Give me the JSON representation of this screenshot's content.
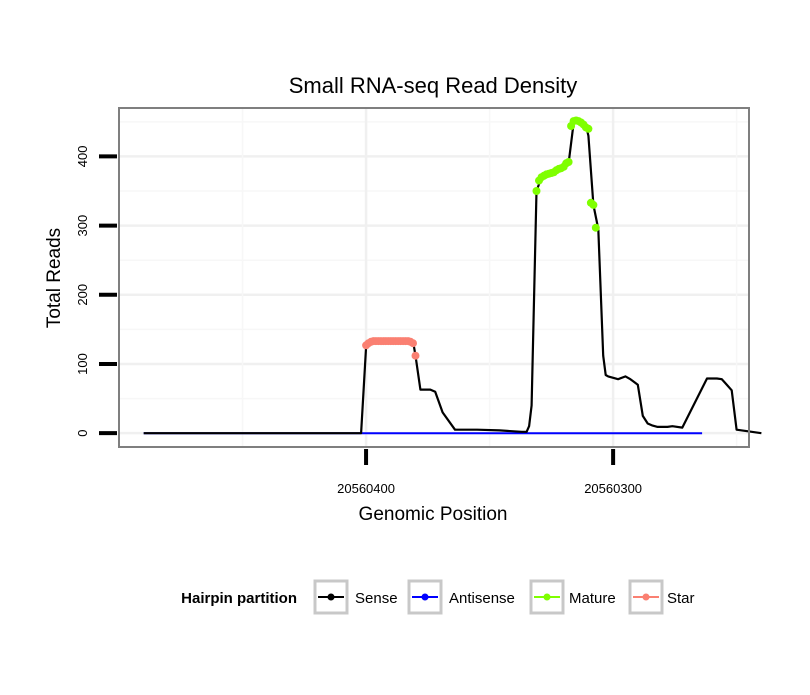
{
  "chart_data": {
    "type": "line",
    "title": "Small RNA-seq Read Density",
    "xlabel": "Genomic Position",
    "ylabel": "Total Reads",
    "x_reversed": true,
    "xlim": [
      20560500,
      20560245
    ],
    "ylim": [
      -20,
      470
    ],
    "x_ticks": [
      20560400,
      20560300
    ],
    "x_tick_labels": [
      "20560400",
      "20560300"
    ],
    "y_ticks": [
      0,
      100,
      200,
      300,
      400
    ],
    "y_tick_labels": [
      "0",
      "100",
      "200",
      "300",
      "400"
    ],
    "grid": true,
    "legend": {
      "title": "Hairpin partition",
      "position": "bottom",
      "items": [
        "Sense",
        "Antisense",
        "Mature",
        "Star"
      ]
    },
    "colors": {
      "Sense": "#000000",
      "Antisense": "#0000ff",
      "Mature": "#7fff00",
      "Star": "#fa8072"
    },
    "series": [
      {
        "name": "Sense",
        "x": [
          20560490,
          20560402,
          20560400,
          20560398,
          20560381,
          20560380,
          20560378,
          20560374,
          20560372,
          20560369,
          20560364,
          20560355,
          20560346,
          20560337,
          20560335,
          20560334,
          20560333,
          20560331,
          20560329,
          20560325,
          20560321,
          20560318,
          20560316,
          20560314,
          20560311,
          20560310,
          20560308,
          20560306,
          20560304,
          20560303,
          20560302,
          20560298,
          20560295,
          20560293,
          20560290,
          20560288,
          20560286,
          20560284,
          20560282,
          20560278,
          20560276,
          20560272,
          20560262,
          20560258,
          20560256,
          20560254,
          20560252,
          20560250,
          20560240
        ],
        "y": [
          0,
          0,
          125,
          133,
          133,
          112,
          63,
          63,
          60,
          30,
          5,
          5,
          4,
          2,
          2,
          10,
          40,
          350,
          370,
          375,
          380,
          390,
          448,
          452,
          445,
          430,
          330,
          295,
          112,
          84,
          82,
          78,
          82,
          78,
          70,
          25,
          14,
          11,
          9,
          9,
          10,
          8,
          79,
          79,
          78,
          70,
          62,
          5,
          0
        ]
      },
      {
        "name": "Antisense",
        "x": [
          20560490,
          20560264
        ],
        "y": [
          0,
          0
        ]
      },
      {
        "name": "Mature",
        "x": [
          20560331,
          20560330,
          20560329,
          20560328,
          20560327,
          20560326,
          20560325,
          20560324,
          20560323,
          20560322,
          20560321,
          20560320,
          20560319,
          20560318,
          20560317,
          20560316,
          20560315,
          20560314,
          20560313,
          20560312,
          20560311,
          20560310,
          20560309,
          20560308,
          20560307
        ],
        "y": [
          350,
          365,
          370,
          372,
          374,
          375,
          376,
          377,
          380,
          382,
          383,
          385,
          390,
          392,
          444,
          451,
          452,
          451,
          449,
          446,
          442,
          440,
          333,
          330,
          297
        ]
      },
      {
        "name": "Star",
        "x": [
          20560400,
          20560399,
          20560398,
          20560397,
          20560396,
          20560395,
          20560394,
          20560393,
          20560392,
          20560391,
          20560390,
          20560389,
          20560388,
          20560387,
          20560386,
          20560385,
          20560384,
          20560383,
          20560382,
          20560381,
          20560380
        ],
        "y": [
          127,
          130,
          132,
          133,
          133,
          133,
          133,
          133,
          133,
          133,
          133,
          133,
          133,
          133,
          133,
          133,
          133,
          133,
          132,
          130,
          112
        ]
      }
    ]
  }
}
